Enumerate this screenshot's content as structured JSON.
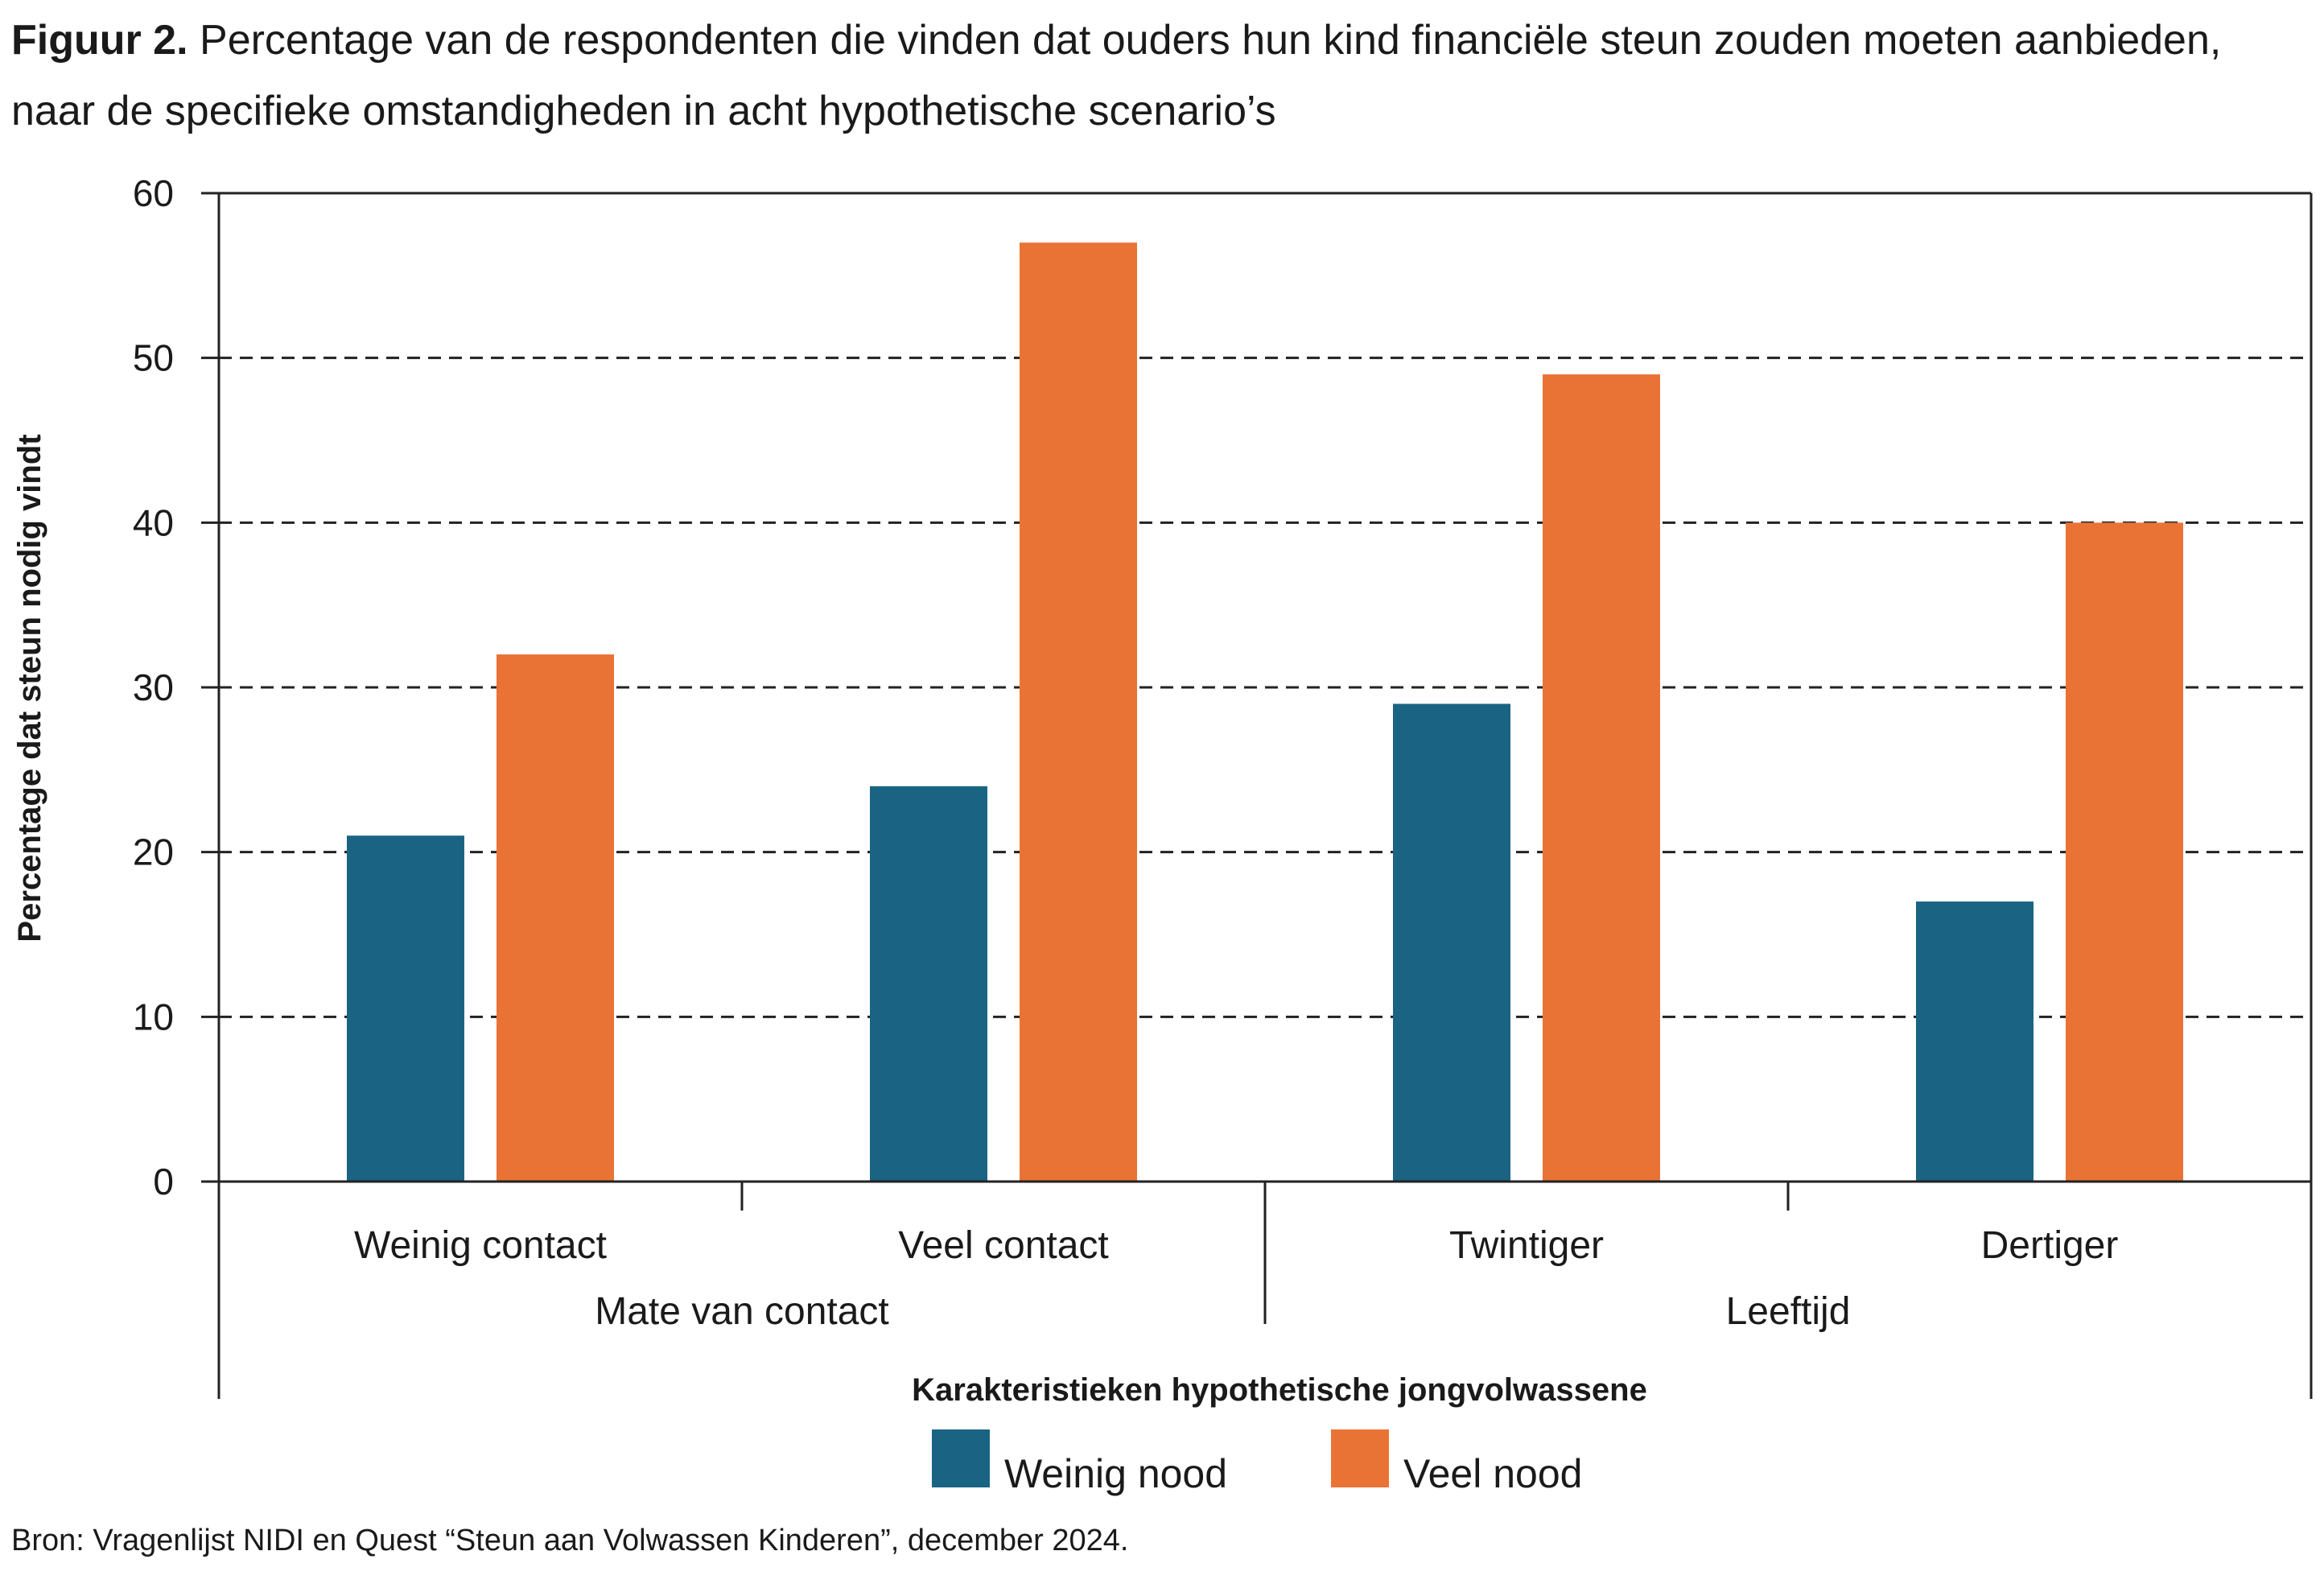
{
  "title": {
    "figure_label": "Figuur 2.",
    "text": "Percentage van de respondenten die vinden dat ouders hun kind financiële steun zouden moeten aanbieden, naar de specifieke omstandigheden in acht hypothetische scenario’s"
  },
  "chart_data": {
    "type": "bar",
    "categories": [
      "Weinig contact",
      "Veel contact",
      "Twintiger",
      "Dertiger"
    ],
    "groups": [
      {
        "label": "Mate van contact",
        "categories": [
          "Weinig contact",
          "Veel contact"
        ]
      },
      {
        "label": "Leeftijd",
        "categories": [
          "Twintiger",
          "Dertiger"
        ]
      }
    ],
    "series": [
      {
        "name": "Weinig nood",
        "color": "#1a6383",
        "values": [
          21,
          24,
          29,
          17
        ]
      },
      {
        "name": "Veel nood",
        "color": "#e97335",
        "values": [
          32,
          57,
          49,
          40
        ]
      }
    ],
    "ylabel": "Percentage dat steun nodig vindt",
    "xlabel": "Karakteristieken hypothetische jongvolwassene",
    "ylim": [
      0,
      60
    ],
    "yticks": [
      0,
      10,
      20,
      30,
      40,
      50,
      60
    ],
    "grid": "dashed horizontal",
    "legend_position": "bottom"
  },
  "source": "Bron: Vragenlijst NIDI en Quest “Steun aan Volwassen Kinderen”, december 2024."
}
